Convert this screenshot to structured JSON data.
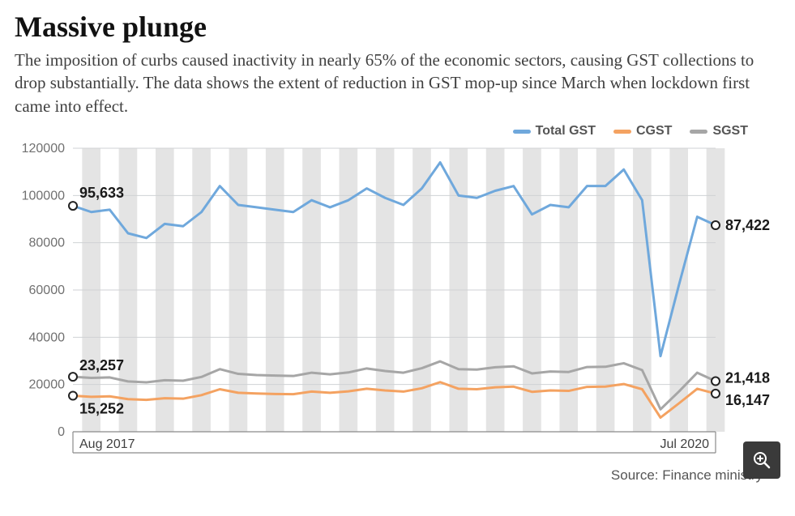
{
  "title": "Massive plunge",
  "title_fontsize": 36,
  "subtitle": "The imposition of curbs caused inactivity in nearly 65% of the economic sectors, causing GST collections to drop substantially. The data shows the extent of reduction in GST mop-up since March when lockdown first came into effect.",
  "subtitle_fontsize": 21,
  "source": "Source: Finance ministry",
  "source_fontsize": 17,
  "chart": {
    "type": "line",
    "ylim": [
      0,
      120000
    ],
    "yticks": [
      0,
      20000,
      40000,
      60000,
      80000,
      100000,
      120000
    ],
    "ytick_fontsize": 16,
    "xaxis_start_label": "Aug 2017",
    "xaxis_end_label": "Jul 2020",
    "xaxis_fontsize": 16,
    "plot_bg": "#ffffff",
    "grid_color": "#cfd2d4",
    "bar_color": "#e4e4e4",
    "axis_color": "#8a8a8a",
    "legend_fontsize": 16,
    "datalabel_fontsize": 18,
    "line_width": 3,
    "series": [
      {
        "name": "Total GST",
        "color": "#6fa8dc",
        "start_label": "95,633",
        "end_label": "87,422",
        "values": [
          95633,
          93000,
          94000,
          84000,
          82000,
          88000,
          87000,
          93000,
          104000,
          96000,
          95000,
          94000,
          93000,
          98000,
          95000,
          98000,
          103000,
          99000,
          96000,
          103000,
          114000,
          100000,
          99000,
          102000,
          104000,
          92000,
          96000,
          95000,
          104000,
          104000,
          111000,
          98000,
          32000,
          62000,
          91000,
          87422
        ]
      },
      {
        "name": "CGST",
        "color": "#f4a261",
        "start_label": "15,252",
        "end_label": "16,147",
        "values": [
          15252,
          14800,
          15000,
          13800,
          13500,
          14200,
          14000,
          15500,
          18000,
          16500,
          16200,
          16000,
          15900,
          17000,
          16500,
          17100,
          18200,
          17500,
          17000,
          18400,
          21000,
          18200,
          18000,
          18800,
          19100,
          16900,
          17500,
          17300,
          19000,
          19100,
          20200,
          18000,
          6000,
          12000,
          18200,
          16147
        ]
      },
      {
        "name": "SGST",
        "color": "#a6a6a6",
        "start_label": "23,257",
        "end_label": "21,418",
        "values": [
          23257,
          22800,
          23000,
          21300,
          20900,
          21800,
          21600,
          23200,
          26500,
          24500,
          24000,
          23800,
          23600,
          25000,
          24300,
          25100,
          26800,
          25700,
          25000,
          26900,
          29800,
          26500,
          26300,
          27300,
          27700,
          24700,
          25500,
          25300,
          27400,
          27500,
          29000,
          26100,
          9500,
          17000,
          25000,
          21418
        ]
      }
    ],
    "endpoint_marker": {
      "fill": "#ffffff",
      "stroke": "#222222",
      "radius": 5,
      "stroke_width": 2
    }
  },
  "zoom_button_bg": "#3a3a3a",
  "zoom_icon_color": "#ffffff"
}
